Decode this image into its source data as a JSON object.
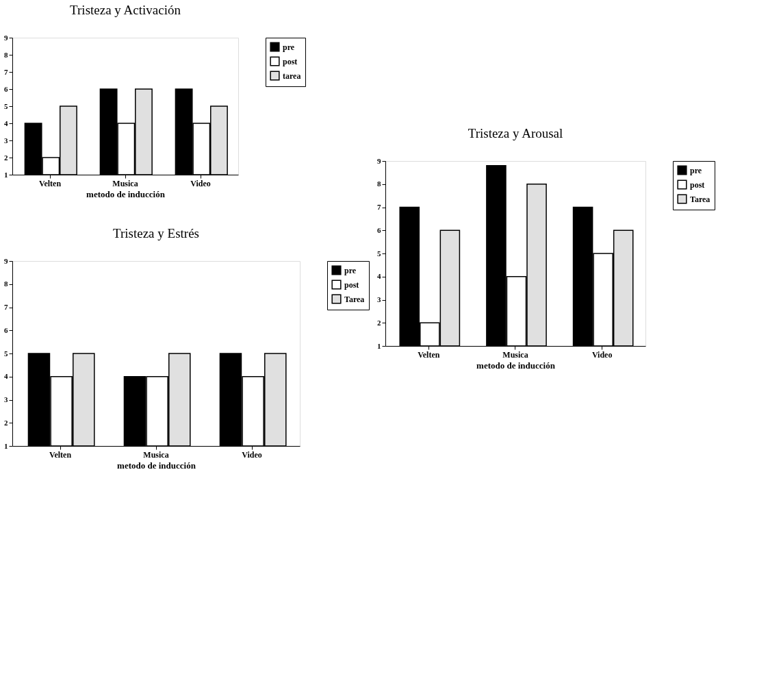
{
  "chart_data": [
    {
      "type": "bar",
      "title": "Tristeza y Activación",
      "xlabel": "metodo de inducción",
      "categories": [
        "Velten",
        "Musica",
        "Video"
      ],
      "ylim": [
        1,
        9
      ],
      "yticks": [
        1,
        2,
        3,
        4,
        5,
        6,
        7,
        8,
        9
      ],
      "grid": false,
      "legend": "right",
      "series": [
        {
          "name": "pre",
          "color": "#000000",
          "values": [
            4,
            6,
            6
          ]
        },
        {
          "name": "post",
          "color": "#ffffff",
          "values": [
            2,
            4,
            4
          ]
        },
        {
          "name": "tarea",
          "color": "#e0e0e0",
          "values": [
            5,
            6,
            5
          ]
        }
      ]
    },
    {
      "type": "bar",
      "title": "Tristeza y  Arousal",
      "xlabel": "metodo de inducción",
      "categories": [
        "Velten",
        "Musica",
        "Video"
      ],
      "ylim": [
        1,
        9
      ],
      "yticks": [
        1,
        2,
        3,
        4,
        5,
        6,
        7,
        8,
        9
      ],
      "grid": false,
      "legend": "right",
      "series": [
        {
          "name": "pre",
          "color": "#000000",
          "values": [
            7,
            8.8,
            7
          ]
        },
        {
          "name": "post",
          "color": "#ffffff",
          "values": [
            2,
            4,
            5
          ]
        },
        {
          "name": "Tarea",
          "color": "#e0e0e0",
          "values": [
            6,
            8,
            6
          ]
        }
      ]
    },
    {
      "type": "bar",
      "title": "Tristeza y Estrés",
      "xlabel": "metodo de inducción",
      "categories": [
        "Velten",
        "Musica",
        "Video"
      ],
      "ylim": [
        1,
        9
      ],
      "yticks": [
        1,
        2,
        3,
        4,
        5,
        6,
        7,
        8,
        9
      ],
      "grid": false,
      "legend": "right",
      "series": [
        {
          "name": "pre",
          "color": "#000000",
          "values": [
            5,
            4,
            5
          ]
        },
        {
          "name": "post",
          "color": "#ffffff",
          "values": [
            4,
            4,
            4
          ]
        },
        {
          "name": "Tarea",
          "color": "#e0e0e0",
          "values": [
            5,
            5,
            5
          ]
        }
      ]
    }
  ]
}
